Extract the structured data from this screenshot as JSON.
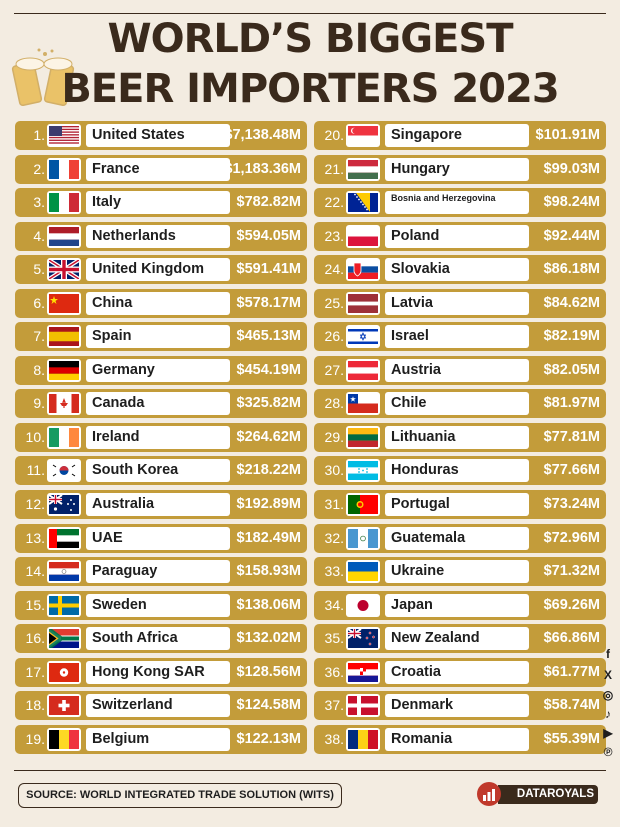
{
  "header": {
    "title_line1": "WORLD’S BIGGEST",
    "title_line2": "BEER IMPORTERS 2023"
  },
  "footer": {
    "source": "SOURCE: WORLD INTEGRATED TRADE SOLUTION (WITS)",
    "brand": "DATAROYALS"
  },
  "social_icons": [
    "facebook-icon",
    "x-icon",
    "instagram-icon",
    "tiktok-icon",
    "youtube-icon",
    "pinterest-icon"
  ],
  "colors": {
    "background": "#f3ece1",
    "row": "#c39c3a",
    "title": "#3a2a1c"
  },
  "chart_data": {
    "type": "table",
    "columns": [
      "rank",
      "country",
      "value"
    ],
    "rows": [
      {
        "rank": "1.",
        "country": "United States",
        "value": "$7,138.48M",
        "flag": "us"
      },
      {
        "rank": "2.",
        "country": "France",
        "value": "$1,183.36M",
        "flag": "fr"
      },
      {
        "rank": "3.",
        "country": "Italy",
        "value": "$782.82M",
        "flag": "it"
      },
      {
        "rank": "4.",
        "country": "Netherlands",
        "value": "$594.05M",
        "flag": "nl"
      },
      {
        "rank": "5.",
        "country": "United Kingdom",
        "value": "$591.41M",
        "flag": "gb"
      },
      {
        "rank": "6.",
        "country": "China",
        "value": "$578.17M",
        "flag": "cn"
      },
      {
        "rank": "7.",
        "country": "Spain",
        "value": "$465.13M",
        "flag": "es"
      },
      {
        "rank": "8.",
        "country": "Germany",
        "value": "$454.19M",
        "flag": "de"
      },
      {
        "rank": "9.",
        "country": "Canada",
        "value": "$325.82M",
        "flag": "ca"
      },
      {
        "rank": "10.",
        "country": "Ireland",
        "value": "$264.62M",
        "flag": "ie"
      },
      {
        "rank": "11.",
        "country": "South Korea",
        "value": "$218.22M",
        "flag": "kr"
      },
      {
        "rank": "12.",
        "country": "Australia",
        "value": "$192.89M",
        "flag": "au"
      },
      {
        "rank": "13.",
        "country": "UAE",
        "value": "$182.49M",
        "flag": "ae"
      },
      {
        "rank": "14.",
        "country": "Paraguay",
        "value": "$158.93M",
        "flag": "py"
      },
      {
        "rank": "15.",
        "country": "Sweden",
        "value": "$138.06M",
        "flag": "se"
      },
      {
        "rank": "16.",
        "country": "South Africa",
        "value": "$132.02M",
        "flag": "za"
      },
      {
        "rank": "17.",
        "country": "Hong Kong SAR",
        "value": "$128.56M",
        "flag": "hk"
      },
      {
        "rank": "18.",
        "country": "Switzerland",
        "value": "$124.58M",
        "flag": "ch"
      },
      {
        "rank": "19.",
        "country": "Belgium",
        "value": "$122.13M",
        "flag": "be"
      },
      {
        "rank": "20.",
        "country": "Singapore",
        "value": "$101.91M",
        "flag": "sg"
      },
      {
        "rank": "21.",
        "country": "Hungary",
        "value": "$99.03M",
        "flag": "hu"
      },
      {
        "rank": "22.",
        "country": "Bosnia and Herzegovina",
        "value": "$98.24M",
        "flag": "ba"
      },
      {
        "rank": "23.",
        "country": "Poland",
        "value": "$92.44M",
        "flag": "pl"
      },
      {
        "rank": "24.",
        "country": "Slovakia",
        "value": "$86.18M",
        "flag": "sk"
      },
      {
        "rank": "25.",
        "country": "Latvia",
        "value": "$84.62M",
        "flag": "lv"
      },
      {
        "rank": "26.",
        "country": "Israel",
        "value": "$82.19M",
        "flag": "il"
      },
      {
        "rank": "27.",
        "country": "Austria",
        "value": "$82.05M",
        "flag": "at"
      },
      {
        "rank": "28.",
        "country": "Chile",
        "value": "$81.97M",
        "flag": "cl"
      },
      {
        "rank": "29.",
        "country": "Lithuania",
        "value": "$77.81M",
        "flag": "lt"
      },
      {
        "rank": "30.",
        "country": "Honduras",
        "value": "$77.66M",
        "flag": "hn"
      },
      {
        "rank": "31.",
        "country": "Portugal",
        "value": "$73.24M",
        "flag": "pt"
      },
      {
        "rank": "32.",
        "country": "Guatemala",
        "value": "$72.96M",
        "flag": "gt"
      },
      {
        "rank": "33.",
        "country": "Ukraine",
        "value": "$71.32M",
        "flag": "ua"
      },
      {
        "rank": "34.",
        "country": "Japan",
        "value": "$69.26M",
        "flag": "jp"
      },
      {
        "rank": "35.",
        "country": "New Zealand",
        "value": "$66.86M",
        "flag": "nz"
      },
      {
        "rank": "36.",
        "country": "Croatia",
        "value": "$61.77M",
        "flag": "hr"
      },
      {
        "rank": "37.",
        "country": "Denmark",
        "value": "$58.74M",
        "flag": "dk"
      },
      {
        "rank": "38.",
        "country": "Romania",
        "value": "$55.39M",
        "flag": "ro"
      }
    ]
  }
}
